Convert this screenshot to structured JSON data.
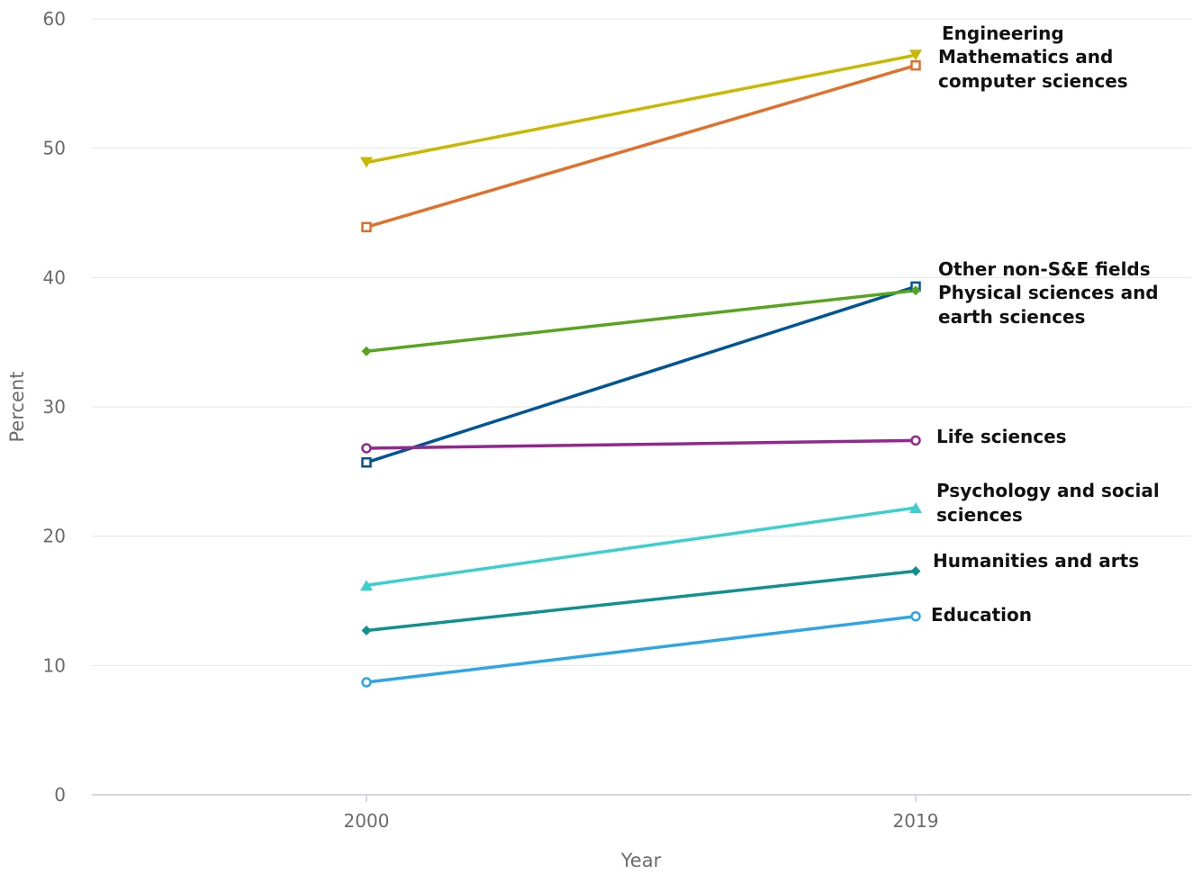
{
  "chart_data": {
    "type": "line",
    "xlabel": "Year",
    "ylabel": "Percent",
    "ylim": [
      0,
      60
    ],
    "yticks": [
      0,
      10,
      20,
      30,
      40,
      50,
      60
    ],
    "categories": [
      "2000",
      "2019"
    ],
    "grid": true,
    "legend": "direct labels at right end of lines",
    "series": [
      {
        "name": "Engineering",
        "values": [
          48.9,
          57.2
        ],
        "color": "#c9b800",
        "marker": "triangle-down",
        "label_lines": [
          "Engineering"
        ]
      },
      {
        "name": "Mathematics and computer sciences",
        "values": [
          43.9,
          56.4
        ],
        "color": "#e0702a",
        "marker": "square-open",
        "label_lines": [
          "Mathematics and",
          "computer sciences"
        ]
      },
      {
        "name": "Other non-S&E fields",
        "values": [
          25.7,
          39.3
        ],
        "color": "#005595",
        "marker": "square-open",
        "label_lines": [
          "Other non-S&E fields"
        ]
      },
      {
        "name": "Physical sciences and earth sciences",
        "values": [
          34.3,
          39.0
        ],
        "color": "#57a51e",
        "marker": "diamond",
        "label_lines": [
          "Physical sciences and",
          "earth sciences"
        ]
      },
      {
        "name": "Life sciences",
        "values": [
          26.8,
          27.4
        ],
        "color": "#93278f",
        "marker": "circle-open",
        "label_lines": [
          "Life sciences"
        ]
      },
      {
        "name": "Psychology and social sciences",
        "values": [
          16.2,
          22.2
        ],
        "color": "#3ccfcf",
        "marker": "triangle-up",
        "label_lines": [
          "Psychology and social",
          "sciences"
        ]
      },
      {
        "name": "Humanities and arts",
        "values": [
          12.7,
          17.3
        ],
        "color": "#0f9190",
        "marker": "diamond",
        "label_lines": [
          "Humanities and arts"
        ]
      },
      {
        "name": "Education",
        "values": [
          8.7,
          13.8
        ],
        "color": "#2ea6e6",
        "marker": "circle-open",
        "label_lines": [
          "Education"
        ]
      }
    ]
  }
}
